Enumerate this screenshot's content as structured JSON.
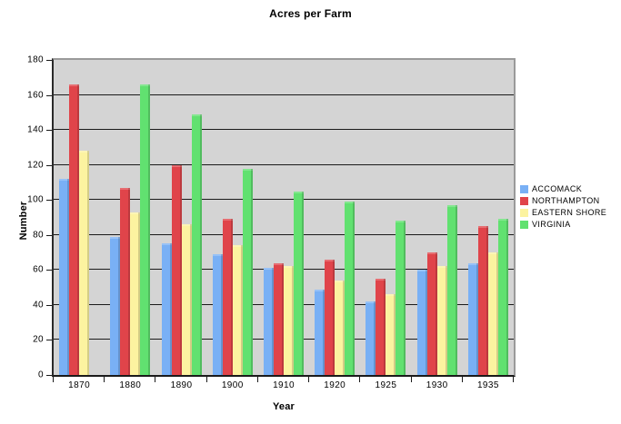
{
  "title": "Acres per Farm",
  "colors": {
    "plot_background": "#d4d4d4",
    "plot_border": "#9a9a9a",
    "gridline": "#1a1a1a",
    "accomack": "#79b0f5",
    "northampton": "#e0444a",
    "eastern_shore": "#fcf3a0",
    "virginia": "#61e170"
  },
  "chart_data": {
    "type": "bar",
    "title": "Acres per Farm",
    "xlabel": "Year",
    "ylabel": "Number",
    "ylim": [
      0,
      180
    ],
    "ytick_step": 20,
    "grid": true,
    "legend_position": "right",
    "categories": [
      "1870",
      "1880",
      "1890",
      "1900",
      "1910",
      "1920",
      "1925",
      "1930",
      "1935"
    ],
    "series": [
      {
        "name": "ACCOMACK",
        "color": "#79b0f5",
        "values": [
          112,
          79,
          75,
          69,
          61,
          49,
          42,
          60,
          64
        ]
      },
      {
        "name": "NORTHAMPTON",
        "color": "#e0444a",
        "values": [
          166,
          107,
          120,
          89,
          64,
          66,
          55,
          70,
          85
        ]
      },
      {
        "name": "EASTERN SHORE",
        "color": "#fcf3a0",
        "values": [
          128,
          93,
          86,
          74,
          62,
          54,
          46,
          62,
          70
        ]
      },
      {
        "name": "VIRGINIA",
        "color": "#61e170",
        "values": [
          null,
          166,
          149,
          118,
          105,
          99,
          88,
          97,
          89
        ]
      }
    ]
  }
}
